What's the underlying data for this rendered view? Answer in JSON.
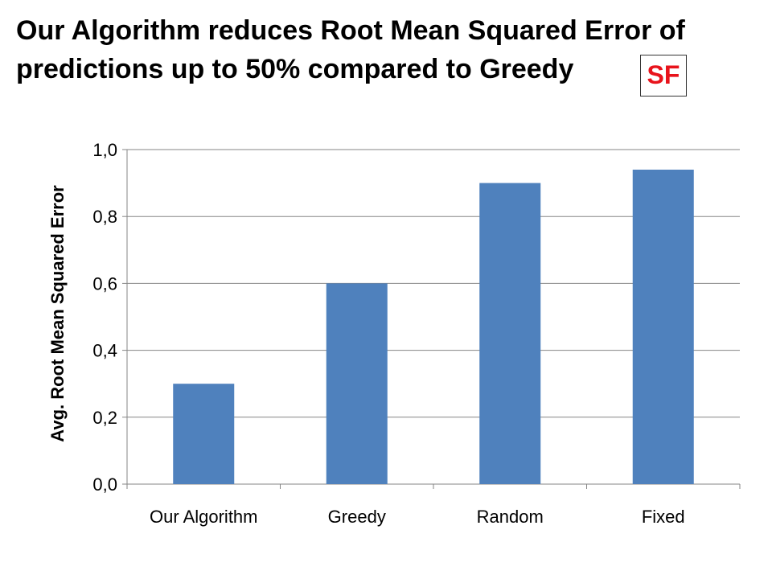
{
  "title": "Our Algorithm reduces Root Mean Squared Error of predictions up to 50% compared to Greedy",
  "tag": "SF",
  "colors": {
    "bar": "#4f81bd",
    "grid": "#868686",
    "tag_text": "#e8131b"
  },
  "chart_data": {
    "type": "bar",
    "categories": [
      "Our Algorithm",
      "Greedy",
      "Random",
      "Fixed"
    ],
    "values": [
      0.3,
      0.6,
      0.9,
      0.94
    ],
    "xlabel": "",
    "ylabel": "Avg. Root Mean Squared Error",
    "ylim": [
      0,
      1.0
    ],
    "yticks": [
      "0,0",
      "0,2",
      "0,4",
      "0,6",
      "0,8",
      "1,0"
    ],
    "grid": true,
    "legend": "none"
  }
}
